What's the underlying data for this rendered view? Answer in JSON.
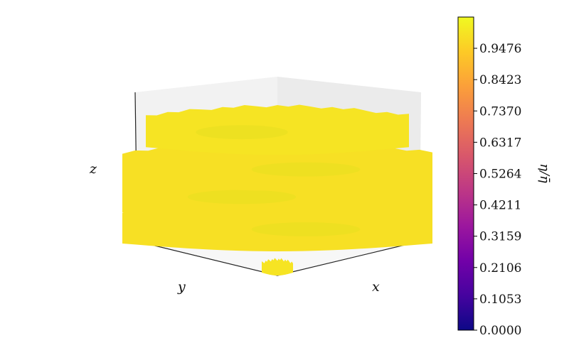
{
  "chart_data": {
    "type": "3d-volume",
    "xlabel": "x",
    "ylabel": "y",
    "zlabel": "z",
    "grid": false,
    "colormap": "plasma",
    "colorbar": {
      "label": "η/η̄",
      "min": 0.0,
      "max": 1.0527,
      "ticks": [
        "0.0000",
        "0.1053",
        "0.2106",
        "0.3159",
        "0.4211",
        "0.5264",
        "0.6317",
        "0.7370",
        "0.8423",
        "0.9476"
      ],
      "stops": [
        "#0d0887",
        "#46039f",
        "#7201a8",
        "#9c179e",
        "#bd3786",
        "#d8576b",
        "#ed7953",
        "#fb9f3a",
        "#fdca26",
        "#f0f921"
      ]
    },
    "layers": [
      {
        "level": 0.0,
        "value": 1.0
      },
      {
        "level": 0.25,
        "value": 0.99
      },
      {
        "level": 0.45,
        "value": 0.99
      },
      {
        "level": 0.62,
        "value": 0.99
      },
      {
        "level": 0.85,
        "value": 1.0
      }
    ]
  }
}
